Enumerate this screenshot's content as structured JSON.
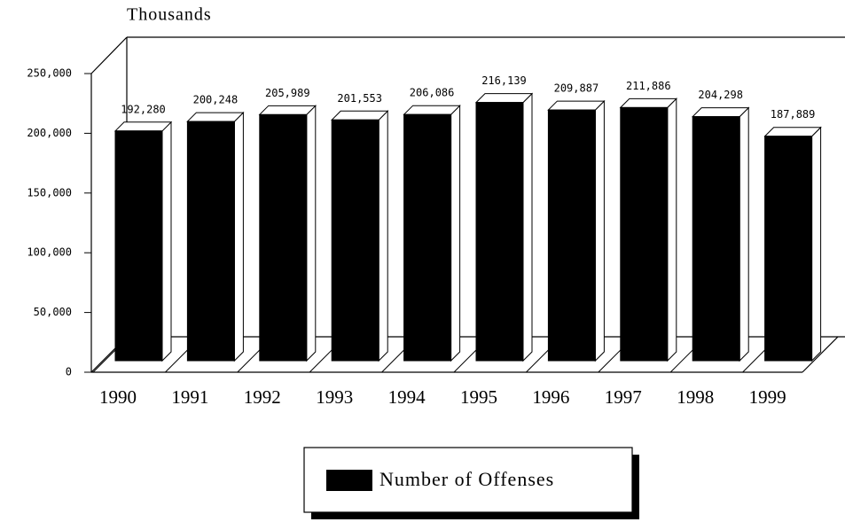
{
  "chart_data": {
    "type": "bar3d",
    "y_axis_label": "Thousands",
    "categories": [
      "1990",
      "1991",
      "1992",
      "1993",
      "1994",
      "1995",
      "1996",
      "1997",
      "1998",
      "1999"
    ],
    "series": [
      {
        "name": "Number of Offenses",
        "color": "#000000",
        "values": [
          192280,
          200248,
          205989,
          201553,
          206086,
          216139,
          209887,
          211886,
          204298,
          187889
        ],
        "value_labels": [
          "192,280",
          "200,248",
          "205,989",
          "201,553",
          "206,086",
          "216,139",
          "209,887",
          "211,886",
          "204,298",
          "187,889"
        ]
      }
    ],
    "ylim": [
      0,
      250000
    ],
    "yticks": [
      0,
      {
        "value": 50000,
        "label": "50,000"
      },
      {
        "value": 100000,
        "label": "100,000"
      },
      {
        "value": 150000,
        "label": "150,000"
      },
      {
        "value": 200000,
        "label": "200,000"
      },
      {
        "value": 250000,
        "label": "250,000"
      }
    ],
    "legend": "bottom"
  }
}
